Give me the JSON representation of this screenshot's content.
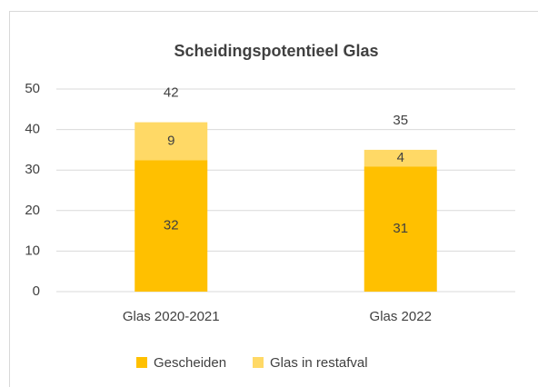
{
  "chart_data": {
    "type": "stacked_bar",
    "title": "Scheidingspotentieel Glas",
    "categories": [
      "Glas 2020-2021",
      "Glas 2022"
    ],
    "series": [
      {
        "name": "Gescheiden",
        "color": "#ffc000",
        "values": [
          32.4,
          30.9
        ],
        "value_labels": [
          "32",
          "31"
        ]
      },
      {
        "name": "Glas in restafval",
        "color": "#ffd966",
        "values": [
          9.4,
          4.1
        ],
        "value_labels": [
          "9",
          "4"
        ]
      }
    ],
    "totals": [
      42,
      35
    ],
    "ylim": [
      0,
      50
    ],
    "yticks": [
      0,
      10,
      20,
      30,
      40,
      50
    ],
    "grid": true,
    "legend": "bottom"
  }
}
